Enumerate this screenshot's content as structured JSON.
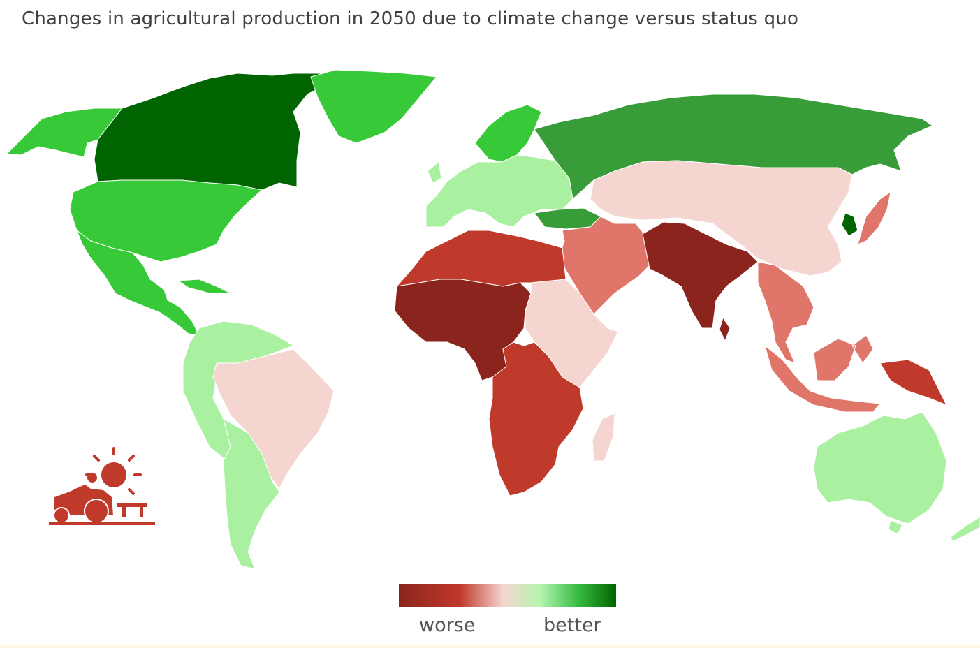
{
  "title": "Changes in agricultural production in 2050 due to climate change versus status quo",
  "legend": {
    "worse_label": "worse",
    "better_label": "better",
    "gradient": [
      "#8b241d",
      "#c0392b",
      "#f5d5d0",
      "#b5f5b0",
      "#3bbd45",
      "#006400"
    ]
  },
  "colors": {
    "much_better": "#006400",
    "better": "#389c38",
    "moderately_better": "#38c938",
    "slightly_better": "#a9f0a0",
    "slightly_worse": "#f5d5d0",
    "moderately_worse": "#e0766a",
    "worse": "#bf3a2b",
    "much_worse": "#8b241d"
  },
  "regions": [
    {
      "name": "Canada",
      "level": "much_better"
    },
    {
      "name": "Alaska",
      "level": "moderately_better"
    },
    {
      "name": "Greenland",
      "level": "moderately_better"
    },
    {
      "name": "United States",
      "level": "moderately_better"
    },
    {
      "name": "Mexico and Central America",
      "level": "moderately_better"
    },
    {
      "name": "Caribbean",
      "level": "moderately_better"
    },
    {
      "name": "Western South America",
      "level": "slightly_better"
    },
    {
      "name": "Brazil",
      "level": "slightly_worse"
    },
    {
      "name": "Southern South America",
      "level": "slightly_better"
    },
    {
      "name": "Europe",
      "level": "slightly_better"
    },
    {
      "name": "Scandinavia",
      "level": "moderately_better"
    },
    {
      "name": "Russia",
      "level": "better"
    },
    {
      "name": "Turkey",
      "level": "better"
    },
    {
      "name": "Central and East Asia",
      "level": "slightly_worse"
    },
    {
      "name": "Korea",
      "level": "much_better"
    },
    {
      "name": "Japan",
      "level": "moderately_worse"
    },
    {
      "name": "Middle East",
      "level": "moderately_worse"
    },
    {
      "name": "South Asia",
      "level": "much_worse"
    },
    {
      "name": "Southeast Asia",
      "level": "moderately_worse"
    },
    {
      "name": "Indonesia",
      "level": "moderately_worse"
    },
    {
      "name": "Papua New Guinea",
      "level": "worse"
    },
    {
      "name": "North Africa",
      "level": "worse"
    },
    {
      "name": "West and Central Africa",
      "level": "much_worse"
    },
    {
      "name": "East Africa",
      "level": "slightly_worse"
    },
    {
      "name": "Southern Africa",
      "level": "worse"
    },
    {
      "name": "Madagascar",
      "level": "slightly_worse"
    },
    {
      "name": "Australia",
      "level": "slightly_better"
    },
    {
      "name": "New Zealand",
      "level": "slightly_better"
    }
  ],
  "icons": [
    "farmer-tractor-sun-icon"
  ]
}
